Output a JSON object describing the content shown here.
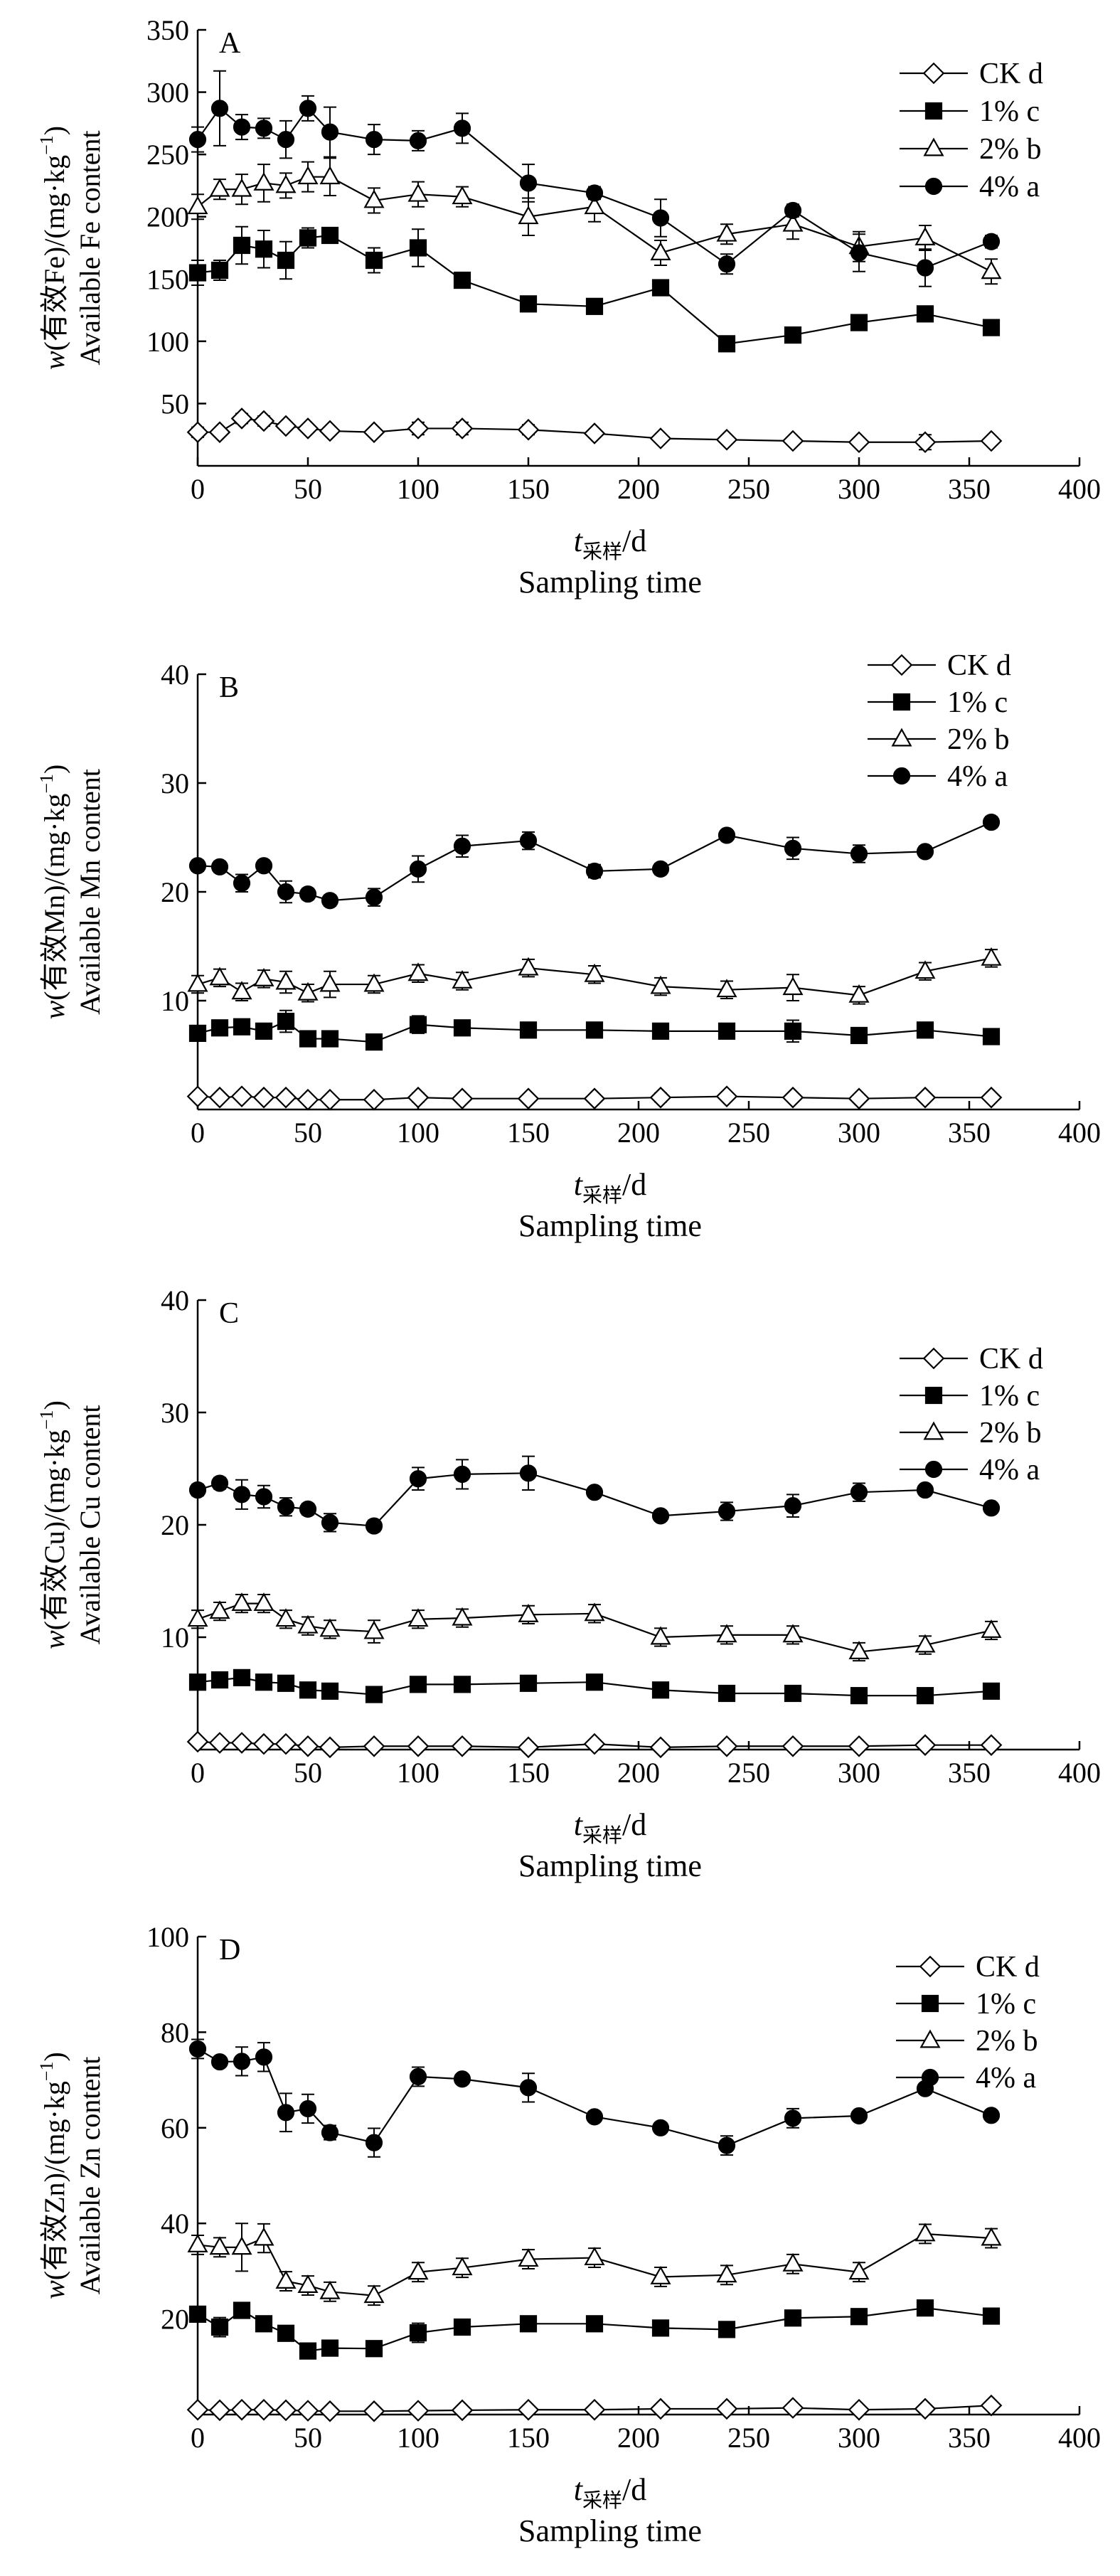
{
  "chart_data": [
    {
      "type": "line",
      "panel_label": "A",
      "ylabel_prefix": "w",
      "ylabel_main": "(有效Fe)/(mg·kg",
      "ylabel_sup": "−1",
      "ylabel_suffix": ")",
      "ylabel_en": "Available Fe content",
      "xlabel_var": "t",
      "xlabel_sub": "采样",
      "xlabel_unit": "/d",
      "xlabel_en": "Sampling time",
      "xlim": [
        0,
        400
      ],
      "ylim": [
        0,
        350
      ],
      "xticks": [
        0,
        50,
        100,
        150,
        200,
        250,
        300,
        350,
        400
      ],
      "yticks": [
        50,
        100,
        150,
        200,
        250,
        300,
        350
      ],
      "legend_position": "top-right",
      "x": [
        0,
        10,
        20,
        30,
        40,
        50,
        60,
        80,
        100,
        120,
        150,
        180,
        210,
        240,
        270,
        300,
        330,
        360
      ],
      "series": [
        {
          "name": "CK d",
          "marker": "diamond",
          "values": [
            27,
            27,
            38,
            36,
            32,
            30,
            28,
            27,
            30,
            30,
            29,
            26,
            22,
            21,
            20,
            19,
            19,
            20
          ],
          "errors": [
            4,
            3,
            4,
            4,
            3,
            3,
            3,
            3,
            5,
            5,
            4,
            3,
            3,
            3,
            3,
            3,
            6,
            3
          ]
        },
        {
          "name": "1% c",
          "marker": "square",
          "values": [
            155,
            157,
            177,
            174,
            165,
            183,
            185,
            165,
            175,
            149,
            130,
            128,
            143,
            98,
            105,
            115,
            122,
            111
          ],
          "errors": [
            10,
            8,
            15,
            15,
            15,
            8,
            5,
            10,
            15,
            4,
            4,
            4,
            5,
            4,
            4,
            4,
            5,
            4
          ]
        },
        {
          "name": "2% b",
          "marker": "triangle",
          "values": [
            208,
            222,
            222,
            227,
            225,
            232,
            232,
            213,
            218,
            216,
            200,
            208,
            171,
            186,
            194,
            176,
            183,
            156
          ],
          "errors": [
            10,
            8,
            12,
            15,
            10,
            12,
            15,
            10,
            10,
            8,
            15,
            12,
            10,
            8,
            12,
            12,
            10,
            10
          ]
        },
        {
          "name": "4% a",
          "marker": "circle",
          "values": [
            262,
            287,
            272,
            271,
            262,
            287,
            268,
            262,
            261,
            271,
            227,
            219,
            199,
            162,
            205,
            171,
            159,
            180
          ],
          "errors": [
            10,
            30,
            10,
            8,
            15,
            10,
            20,
            12,
            8,
            12,
            15,
            5,
            15,
            8,
            5,
            15,
            15,
            5
          ]
        }
      ]
    },
    {
      "type": "line",
      "panel_label": "B",
      "ylabel_prefix": "w",
      "ylabel_main": "(有效Mn)/(mg·kg",
      "ylabel_sup": "−1",
      "ylabel_suffix": ")",
      "ylabel_en": "Available Mn content",
      "xlabel_var": "t",
      "xlabel_sub": "采样",
      "xlabel_unit": "/d",
      "xlabel_en": "Sampling time",
      "xlim": [
        0,
        400
      ],
      "ylim": [
        0,
        40
      ],
      "xticks": [
        0,
        50,
        100,
        150,
        200,
        250,
        300,
        350,
        400
      ],
      "yticks": [
        10,
        20,
        30,
        40
      ],
      "legend_position": "top-right",
      "x": [
        0,
        10,
        20,
        30,
        40,
        50,
        60,
        80,
        100,
        120,
        150,
        180,
        210,
        240,
        270,
        300,
        330,
        360
      ],
      "series": [
        {
          "name": "CK d",
          "marker": "diamond",
          "values": [
            1.2,
            1.1,
            1.2,
            1.1,
            1.1,
            0.9,
            0.9,
            0.9,
            1.1,
            1.0,
            1.0,
            1.0,
            1.1,
            1.2,
            1.1,
            1.0,
            1.1,
            1.1
          ],
          "errors": [
            0.3,
            0.3,
            0.3,
            0.3,
            0.3,
            0.3,
            0.3,
            0.3,
            0.4,
            0.3,
            0.3,
            0.3,
            0.4,
            0.3,
            0.3,
            0.3,
            0.3,
            0.3
          ]
        },
        {
          "name": "1% c",
          "marker": "square",
          "values": [
            7.0,
            7.5,
            7.6,
            7.2,
            8.1,
            6.5,
            6.5,
            6.2,
            7.8,
            7.5,
            7.3,
            7.3,
            7.2,
            7.2,
            7.2,
            6.8,
            7.3,
            6.7
          ],
          "errors": [
            0.5,
            0.5,
            0.5,
            0.5,
            1.0,
            0.5,
            0.5,
            0.5,
            0.8,
            0.5,
            0.4,
            0.4,
            0.4,
            0.4,
            1.0,
            0.4,
            0.4,
            0.4
          ]
        },
        {
          "name": "2% b",
          "marker": "triangle",
          "values": [
            11.5,
            12.1,
            10.8,
            12.0,
            11.7,
            10.7,
            11.5,
            11.5,
            12.5,
            11.8,
            13.0,
            12.4,
            11.3,
            11.0,
            11.2,
            10.5,
            12.7,
            13.9
          ],
          "errors": [
            0.8,
            0.8,
            0.8,
            0.8,
            1.0,
            0.8,
            1.2,
            0.8,
            0.8,
            0.8,
            0.8,
            0.8,
            0.8,
            0.8,
            1.2,
            0.8,
            0.8,
            0.8
          ]
        },
        {
          "name": "4% a",
          "marker": "circle",
          "values": [
            22.4,
            22.3,
            20.8,
            22.4,
            20.0,
            19.8,
            19.2,
            19.5,
            22.1,
            24.2,
            24.7,
            21.9,
            22.1,
            25.2,
            24.0,
            23.5,
            23.7,
            26.4
          ],
          "errors": [
            0.5,
            0.5,
            0.8,
            0.5,
            1.0,
            0.5,
            0.5,
            0.8,
            1.2,
            1.0,
            0.8,
            0.6,
            0.5,
            0.4,
            1.0,
            0.8,
            0.5,
            0.5
          ]
        }
      ]
    },
    {
      "type": "line",
      "panel_label": "C",
      "ylabel_prefix": "w",
      "ylabel_main": "(有效Cu)/(mg·kg",
      "ylabel_sup": "−1",
      "ylabel_suffix": ")",
      "ylabel_en": "Available Cu content",
      "xlabel_var": "t",
      "xlabel_sub": "采样",
      "xlabel_unit": "/d",
      "xlabel_en": "Sampling time",
      "xlim": [
        0,
        400
      ],
      "ylim": [
        0,
        40
      ],
      "xticks": [
        0,
        50,
        100,
        150,
        200,
        250,
        300,
        350,
        400
      ],
      "yticks": [
        10,
        20,
        30,
        40
      ],
      "legend_position": "top-right",
      "x": [
        0,
        10,
        20,
        30,
        40,
        50,
        60,
        80,
        100,
        120,
        150,
        180,
        210,
        240,
        270,
        300,
        330,
        360
      ],
      "series": [
        {
          "name": "CK d",
          "marker": "diamond",
          "values": [
            0.7,
            0.6,
            0.6,
            0.5,
            0.5,
            0.3,
            0.2,
            0.3,
            0.3,
            0.3,
            0.2,
            0.5,
            0.2,
            0.3,
            0.3,
            0.3,
            0.4,
            0.4
          ],
          "errors": [
            0.3,
            0.3,
            0.3,
            0.3,
            0.3,
            0.3,
            0.3,
            0.3,
            0.3,
            0.3,
            0.3,
            0.3,
            0.3,
            0.3,
            0.3,
            0.3,
            0.3,
            0.3
          ]
        },
        {
          "name": "1% c",
          "marker": "square",
          "values": [
            6.0,
            6.2,
            6.4,
            6.0,
            5.9,
            5.3,
            5.2,
            4.9,
            5.8,
            5.8,
            5.9,
            6.0,
            5.3,
            5.0,
            5.0,
            4.8,
            4.8,
            5.2
          ],
          "errors": [
            0.4,
            0.4,
            0.4,
            0.4,
            0.4,
            0.4,
            0.4,
            0.4,
            0.4,
            0.4,
            0.4,
            0.4,
            0.4,
            0.4,
            0.4,
            0.4,
            0.4,
            0.4
          ]
        },
        {
          "name": "2% b",
          "marker": "triangle",
          "values": [
            11.6,
            12.3,
            13.0,
            13.0,
            11.6,
            11.0,
            10.7,
            10.5,
            11.6,
            11.7,
            12.0,
            12.1,
            10.0,
            10.2,
            10.2,
            8.7,
            9.3,
            10.6
          ],
          "errors": [
            0.8,
            0.8,
            0.8,
            0.8,
            0.8,
            0.8,
            0.8,
            1.0,
            0.8,
            0.8,
            0.8,
            0.8,
            0.8,
            0.8,
            0.8,
            0.8,
            0.8,
            0.8
          ]
        },
        {
          "name": "4% a",
          "marker": "circle",
          "values": [
            23.1,
            23.7,
            22.7,
            22.5,
            21.6,
            21.4,
            20.2,
            19.9,
            24.1,
            24.5,
            24.6,
            22.9,
            20.8,
            21.2,
            21.7,
            22.9,
            23.1,
            21.5
          ],
          "errors": [
            0.5,
            0.5,
            1.3,
            1.0,
            0.8,
            0.5,
            0.8,
            0.5,
            1.0,
            1.3,
            1.5,
            0.4,
            0.4,
            0.8,
            1.0,
            0.8,
            0.4,
            0.4
          ]
        }
      ]
    },
    {
      "type": "line",
      "panel_label": "D",
      "ylabel_prefix": "w",
      "ylabel_main": "(有效Zn)/(mg·kg",
      "ylabel_sup": "−1",
      "ylabel_suffix": ")",
      "ylabel_en": "Available Zn content",
      "xlabel_var": "t",
      "xlabel_sub": "采样",
      "xlabel_unit": "/d",
      "xlabel_en": "Sampling time",
      "xlim": [
        0,
        400
      ],
      "ylim": [
        0,
        100
      ],
      "xticks": [
        0,
        50,
        100,
        150,
        200,
        250,
        300,
        350,
        400
      ],
      "yticks": [
        20,
        40,
        60,
        80,
        100
      ],
      "legend_position": "top-right",
      "x": [
        0,
        10,
        20,
        30,
        40,
        50,
        60,
        80,
        100,
        120,
        150,
        180,
        210,
        240,
        270,
        300,
        330,
        360
      ],
      "series": [
        {
          "name": "CK d",
          "marker": "diamond",
          "values": [
            1.0,
            0.9,
            1.0,
            1.0,
            0.9,
            0.8,
            0.7,
            0.7,
            0.8,
            0.9,
            1.0,
            1.0,
            1.2,
            1.2,
            1.4,
            1.0,
            1.2,
            1.9
          ],
          "errors": [
            0.5,
            0.5,
            0.5,
            0.5,
            0.5,
            0.5,
            0.5,
            0.5,
            0.5,
            0.5,
            0.5,
            0.5,
            0.5,
            0.5,
            0.5,
            0.5,
            0.5,
            0.5
          ]
        },
        {
          "name": "1% c",
          "marker": "square",
          "values": [
            21.0,
            18.3,
            21.8,
            19.0,
            17.0,
            13.3,
            13.9,
            13.8,
            17.1,
            18.3,
            19.0,
            19.0,
            18.1,
            17.8,
            20.2,
            20.5,
            22.3,
            20.6
          ],
          "errors": [
            1.0,
            2.0,
            1.0,
            1.0,
            1.0,
            1.5,
            1.0,
            1.0,
            2.0,
            1.0,
            1.0,
            1.0,
            1.0,
            1.0,
            1.0,
            1.0,
            1.0,
            1.0
          ]
        },
        {
          "name": "2% b",
          "marker": "triangle",
          "values": [
            35.5,
            35.0,
            35.0,
            36.9,
            27.9,
            27.0,
            25.7,
            24.9,
            29.8,
            30.7,
            32.5,
            32.8,
            28.8,
            29.2,
            31.5,
            29.8,
            37.8,
            36.9
          ],
          "errors": [
            2.0,
            2.0,
            5.0,
            3.0,
            2.0,
            2.0,
            2.0,
            2.0,
            2.0,
            2.0,
            2.0,
            2.0,
            2.0,
            2.0,
            2.0,
            2.0,
            2.0,
            2.0
          ]
        },
        {
          "name": "4% a",
          "marker": "circle",
          "values": [
            76.5,
            73.8,
            73.9,
            74.8,
            63.2,
            64.0,
            59.0,
            56.9,
            70.7,
            70.2,
            68.4,
            62.3,
            60.0,
            56.3,
            62.0,
            62.5,
            68.2,
            62.6
          ],
          "errors": [
            2.0,
            1.0,
            3.0,
            3.0,
            4.0,
            3.0,
            1.5,
            3.0,
            2.0,
            1.0,
            3.0,
            1.0,
            1.0,
            2.0,
            2.0,
            1.0,
            1.0,
            1.0
          ]
        }
      ]
    }
  ]
}
